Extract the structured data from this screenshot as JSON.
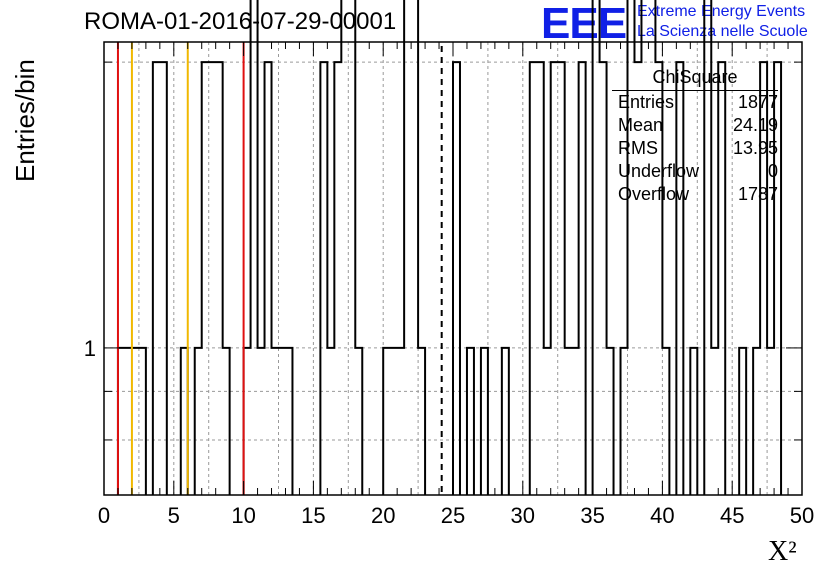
{
  "header": {
    "run_title": "ROMA-01-2016-07-29-00001",
    "logo_text": "EEE",
    "logo_line1": "Extreme Energy Events",
    "logo_line2": "La Scienza nelle Scuole"
  },
  "stats_box": {
    "title": "ChiSquare",
    "rows": [
      {
        "label": "Entries",
        "value": "1877"
      },
      {
        "label": "Mean",
        "value": "24.19"
      },
      {
        "label": "RMS",
        "value": "13.95"
      },
      {
        "label": "Underflow",
        "value": "0"
      },
      {
        "label": "Overflow",
        "value": "1787"
      }
    ]
  },
  "colors": {
    "red_line": "#e01010",
    "yellow_line": "#f0b800",
    "histogram": "#000000",
    "logo": "#1020e6"
  },
  "chart_data": {
    "type": "bar",
    "title": "ROMA-01-2016-07-29-00001",
    "xlabel": "X²",
    "ylabel": "Entries/bin",
    "xlim": [
      0,
      50
    ],
    "ylim": [
      0.7,
      2.1
    ],
    "yscale": "log",
    "grid": true,
    "bin_width": 0.5,
    "x_ticks": [
      "0",
      "5",
      "10",
      "15",
      "20",
      "25",
      "30",
      "35",
      "40",
      "45",
      "50"
    ],
    "y_tick_labels": [
      "1"
    ],
    "bins": [
      [
        1.0,
        3.0,
        1
      ],
      [
        3.5,
        4.5,
        2
      ],
      [
        5.5,
        6.0,
        1
      ],
      [
        6.5,
        7.0,
        1
      ],
      [
        7.0,
        8.5,
        2
      ],
      [
        8.5,
        9.0,
        1
      ],
      [
        10.0,
        10.5,
        1
      ],
      [
        10.5,
        11.0,
        3
      ],
      [
        11.0,
        11.5,
        1
      ],
      [
        11.5,
        12.0,
        2
      ],
      [
        12.0,
        12.5,
        1
      ],
      [
        12.5,
        13.5,
        1
      ],
      [
        15.5,
        16.0,
        2
      ],
      [
        16.0,
        16.5,
        1
      ],
      [
        16.5,
        17.0,
        2
      ],
      [
        17.0,
        18.0,
        3
      ],
      [
        18.0,
        18.5,
        1
      ],
      [
        20.0,
        21.5,
        1
      ],
      [
        21.5,
        22.5,
        3
      ],
      [
        22.5,
        23.0,
        1
      ],
      [
        25.0,
        25.5,
        2
      ],
      [
        26.0,
        26.5,
        1
      ],
      [
        27.0,
        27.5,
        1
      ],
      [
        28.5,
        29.0,
        1
      ],
      [
        30.5,
        31.5,
        2
      ],
      [
        31.5,
        32.0,
        1
      ],
      [
        32.0,
        33.0,
        2
      ],
      [
        33.0,
        33.5,
        1
      ],
      [
        33.5,
        34.0,
        1
      ],
      [
        34.0,
        34.5,
        2
      ],
      [
        35.0,
        35.5,
        3
      ],
      [
        35.5,
        36.0,
        2
      ],
      [
        36.0,
        36.5,
        1
      ],
      [
        37.0,
        37.5,
        1
      ],
      [
        37.5,
        38.0,
        3
      ],
      [
        38.0,
        38.5,
        2
      ],
      [
        38.5,
        39.5,
        3
      ],
      [
        39.5,
        40.0,
        2
      ],
      [
        40.0,
        40.5,
        1
      ],
      [
        41.0,
        41.5,
        2
      ],
      [
        42.0,
        42.5,
        1
      ],
      [
        43.0,
        43.5,
        3
      ],
      [
        43.5,
        44.0,
        1
      ],
      [
        44.0,
        44.5,
        2
      ],
      [
        45.5,
        46.0,
        1
      ],
      [
        46.5,
        47.0,
        1
      ],
      [
        47.0,
        47.5,
        2
      ],
      [
        47.5,
        48.0,
        1
      ],
      [
        48.0,
        48.5,
        2
      ]
    ],
    "vertical_markers": [
      {
        "x": 1.0,
        "color": "red"
      },
      {
        "x": 2.0,
        "color": "yellow"
      },
      {
        "x": 6.0,
        "color": "yellow"
      },
      {
        "x": 10.0,
        "color": "red"
      },
      {
        "x": 24.19,
        "color": "black",
        "style": "dashed"
      }
    ]
  }
}
